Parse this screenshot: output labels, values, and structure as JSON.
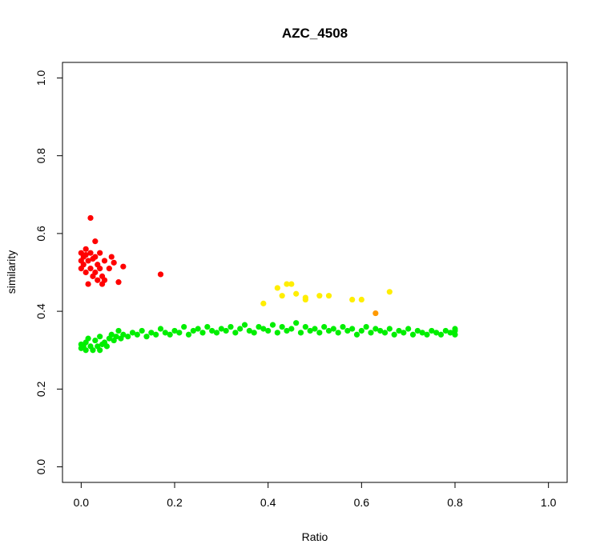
{
  "chart_data": {
    "type": "scatter",
    "title": "AZC_4508",
    "xlabel": "Ratio",
    "ylabel": "similarity",
    "xlim": [
      -0.04,
      1.04
    ],
    "ylim": [
      -0.04,
      1.04
    ],
    "x_ticks": [
      0.0,
      0.2,
      0.4,
      0.6,
      0.8,
      1.0
    ],
    "y_ticks": [
      0.0,
      0.2,
      0.4,
      0.6,
      0.8,
      1.0
    ],
    "x_tick_labels": [
      "0.0",
      "0.2",
      "0.4",
      "0.6",
      "0.8",
      "1.0"
    ],
    "y_tick_labels": [
      "0.0",
      "0.2",
      "0.4",
      "0.6",
      "0.8",
      "1.0"
    ],
    "grid": false,
    "legend": "none",
    "series": [
      {
        "color": "#00ee00",
        "points": [
          [
            0.0,
            0.305
          ],
          [
            0.0,
            0.315
          ],
          [
            0.005,
            0.31
          ],
          [
            0.01,
            0.32
          ],
          [
            0.01,
            0.3
          ],
          [
            0.015,
            0.33
          ],
          [
            0.02,
            0.31
          ],
          [
            0.025,
            0.3
          ],
          [
            0.03,
            0.325
          ],
          [
            0.035,
            0.31
          ],
          [
            0.04,
            0.3
          ],
          [
            0.04,
            0.335
          ],
          [
            0.045,
            0.315
          ],
          [
            0.05,
            0.32
          ],
          [
            0.055,
            0.31
          ],
          [
            0.06,
            0.33
          ],
          [
            0.065,
            0.34
          ],
          [
            0.07,
            0.325
          ],
          [
            0.075,
            0.335
          ],
          [
            0.08,
            0.35
          ],
          [
            0.085,
            0.33
          ],
          [
            0.09,
            0.34
          ],
          [
            0.1,
            0.335
          ],
          [
            0.11,
            0.345
          ],
          [
            0.12,
            0.34
          ],
          [
            0.13,
            0.35
          ],
          [
            0.14,
            0.335
          ],
          [
            0.15,
            0.345
          ],
          [
            0.16,
            0.34
          ],
          [
            0.17,
            0.355
          ],
          [
            0.18,
            0.345
          ],
          [
            0.19,
            0.34
          ],
          [
            0.2,
            0.35
          ],
          [
            0.21,
            0.345
          ],
          [
            0.22,
            0.36
          ],
          [
            0.23,
            0.34
          ],
          [
            0.24,
            0.35
          ],
          [
            0.25,
            0.355
          ],
          [
            0.26,
            0.345
          ],
          [
            0.27,
            0.36
          ],
          [
            0.28,
            0.35
          ],
          [
            0.29,
            0.345
          ],
          [
            0.3,
            0.355
          ],
          [
            0.31,
            0.35
          ],
          [
            0.32,
            0.36
          ],
          [
            0.33,
            0.345
          ],
          [
            0.34,
            0.355
          ],
          [
            0.35,
            0.365
          ],
          [
            0.36,
            0.35
          ],
          [
            0.37,
            0.345
          ],
          [
            0.38,
            0.36
          ],
          [
            0.39,
            0.355
          ],
          [
            0.4,
            0.35
          ],
          [
            0.41,
            0.365
          ],
          [
            0.42,
            0.345
          ],
          [
            0.43,
            0.36
          ],
          [
            0.44,
            0.35
          ],
          [
            0.45,
            0.355
          ],
          [
            0.46,
            0.37
          ],
          [
            0.47,
            0.345
          ],
          [
            0.48,
            0.36
          ],
          [
            0.49,
            0.35
          ],
          [
            0.5,
            0.355
          ],
          [
            0.51,
            0.345
          ],
          [
            0.52,
            0.36
          ],
          [
            0.53,
            0.35
          ],
          [
            0.54,
            0.355
          ],
          [
            0.55,
            0.345
          ],
          [
            0.56,
            0.36
          ],
          [
            0.57,
            0.35
          ],
          [
            0.58,
            0.355
          ],
          [
            0.59,
            0.34
          ],
          [
            0.6,
            0.35
          ],
          [
            0.61,
            0.36
          ],
          [
            0.62,
            0.345
          ],
          [
            0.63,
            0.355
          ],
          [
            0.64,
            0.35
          ],
          [
            0.65,
            0.345
          ],
          [
            0.66,
            0.355
          ],
          [
            0.67,
            0.34
          ],
          [
            0.68,
            0.35
          ],
          [
            0.69,
            0.345
          ],
          [
            0.7,
            0.355
          ],
          [
            0.71,
            0.34
          ],
          [
            0.72,
            0.35
          ],
          [
            0.73,
            0.345
          ],
          [
            0.74,
            0.34
          ],
          [
            0.75,
            0.35
          ],
          [
            0.76,
            0.345
          ],
          [
            0.77,
            0.34
          ],
          [
            0.78,
            0.35
          ],
          [
            0.79,
            0.345
          ],
          [
            0.8,
            0.35
          ],
          [
            0.8,
            0.34
          ],
          [
            0.8,
            0.355
          ]
        ]
      },
      {
        "color": "#ff0000",
        "points": [
          [
            0.0,
            0.53
          ],
          [
            0.0,
            0.55
          ],
          [
            0.0,
            0.51
          ],
          [
            0.005,
            0.54
          ],
          [
            0.005,
            0.52
          ],
          [
            0.01,
            0.56
          ],
          [
            0.01,
            0.5
          ],
          [
            0.01,
            0.545
          ],
          [
            0.015,
            0.53
          ],
          [
            0.015,
            0.47
          ],
          [
            0.02,
            0.64
          ],
          [
            0.02,
            0.55
          ],
          [
            0.02,
            0.51
          ],
          [
            0.025,
            0.535
          ],
          [
            0.025,
            0.49
          ],
          [
            0.03,
            0.58
          ],
          [
            0.03,
            0.54
          ],
          [
            0.03,
            0.5
          ],
          [
            0.035,
            0.52
          ],
          [
            0.035,
            0.48
          ],
          [
            0.04,
            0.55
          ],
          [
            0.04,
            0.51
          ],
          [
            0.045,
            0.49
          ],
          [
            0.045,
            0.47
          ],
          [
            0.05,
            0.53
          ],
          [
            0.05,
            0.48
          ],
          [
            0.06,
            0.51
          ],
          [
            0.065,
            0.54
          ],
          [
            0.07,
            0.525
          ],
          [
            0.08,
            0.475
          ],
          [
            0.09,
            0.515
          ],
          [
            0.17,
            0.495
          ]
        ]
      },
      {
        "color": "#ffee00",
        "points": [
          [
            0.39,
            0.42
          ],
          [
            0.42,
            0.46
          ],
          [
            0.43,
            0.44
          ],
          [
            0.44,
            0.47
          ],
          [
            0.45,
            0.47
          ],
          [
            0.46,
            0.445
          ],
          [
            0.48,
            0.43
          ],
          [
            0.48,
            0.435
          ],
          [
            0.51,
            0.44
          ],
          [
            0.53,
            0.44
          ],
          [
            0.58,
            0.43
          ],
          [
            0.6,
            0.43
          ],
          [
            0.66,
            0.45
          ]
        ]
      },
      {
        "color": "#ff9900",
        "points": [
          [
            0.63,
            0.395
          ]
        ]
      }
    ]
  }
}
